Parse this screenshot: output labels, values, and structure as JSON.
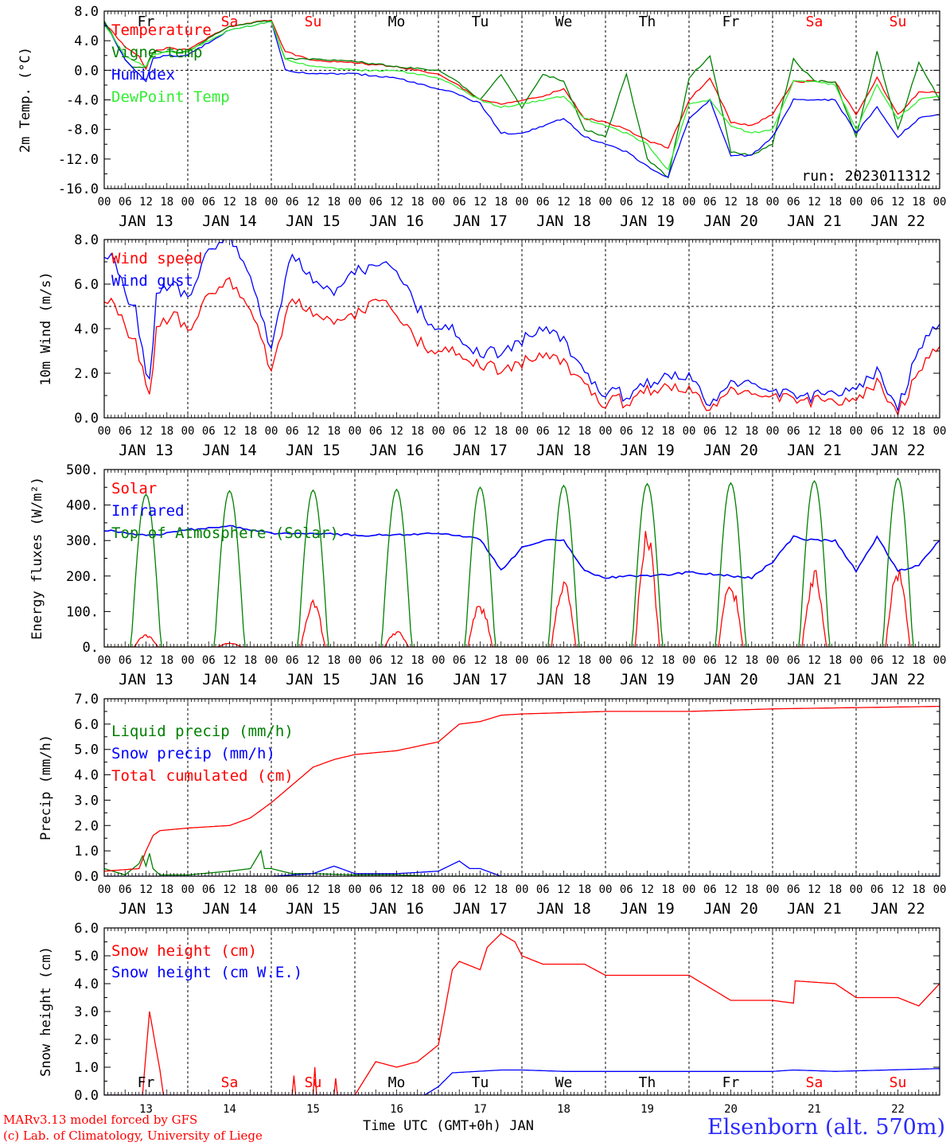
{
  "colors": {
    "red": "#ff0000",
    "green": "#008000",
    "blue": "#0000ff",
    "lime": "#33ee33",
    "black": "#000000"
  },
  "days": [
    "Fr",
    "Sa",
    "Su",
    "Mo",
    "Tu",
    "We",
    "Th",
    "Fr",
    "Sa",
    "Su"
  ],
  "dates": [
    "JAN 13",
    "JAN 14",
    "JAN 15",
    "JAN 16",
    "JAN 17",
    "JAN 18",
    "JAN 19",
    "JAN 20",
    "JAN 21",
    "JAN 22"
  ],
  "day_numbers": [
    "13",
    "14",
    "15",
    "16",
    "17",
    "18",
    "19",
    "20",
    "21",
    "22"
  ],
  "hour_labels": [
    "00",
    "06",
    "12",
    "18"
  ],
  "final_hour_label": "00",
  "footer": {
    "credit_line1": "MARv3.13 model forced by GFS",
    "credit_line2": "(c) Lab. of Climatology, University of Liege",
    "xlabel": "Time UTC (GMT+0h) JAN",
    "station": "Elsenborn (alt. 570m)"
  },
  "chart_data": [
    {
      "type": "line",
      "ylabel": "2m Temp. (°C)",
      "ylim": [
        -16,
        8
      ],
      "yticks": [
        "8.0",
        "4.0",
        "0.0",
        "-4.0",
        "-8.0",
        "-12.0",
        "-16.0"
      ],
      "run_label": "run: 2023011312",
      "x_unit": "hours since JAN 13 00 UTC",
      "series": [
        {
          "name": "Temperature",
          "color": "#ff0000",
          "x": [
            0,
            6,
            10,
            12,
            14,
            18,
            24,
            36,
            48,
            52,
            60,
            72,
            84,
            96,
            100,
            108,
            114,
            120,
            126,
            132,
            138,
            144,
            150,
            156,
            162,
            168,
            174,
            180,
            186,
            192,
            198,
            204,
            210,
            216,
            222,
            228,
            234,
            240
          ],
          "y": [
            6.5,
            3.2,
            2.0,
            0.2,
            2.5,
            3.0,
            2.8,
            6.0,
            6.8,
            2.5,
            1.3,
            1.0,
            0.5,
            -0.5,
            -1.5,
            -4.0,
            -4.5,
            -4.0,
            -3.5,
            -2.5,
            -6.5,
            -7.0,
            -8.0,
            -9.5,
            -10.5,
            -4.0,
            -1.0,
            -7.0,
            -7.5,
            -6.0,
            -1.5,
            -1.5,
            -1.5,
            -6.0,
            -1.0,
            -6.0,
            -3.0,
            -3.0
          ]
        },
        {
          "name": "Vigne temp",
          "color": "#008000",
          "x": [
            0,
            6,
            8,
            12,
            14,
            18,
            24,
            36,
            48,
            52,
            60,
            72,
            84,
            96,
            100,
            108,
            114,
            120,
            126,
            132,
            138,
            144,
            150,
            156,
            162,
            168,
            174,
            180,
            186,
            192,
            198,
            204,
            210,
            216,
            222,
            228,
            234,
            240
          ],
          "y": [
            6.8,
            1.5,
            0.5,
            0.5,
            2.5,
            2.5,
            2.5,
            6.0,
            6.7,
            1.5,
            1.5,
            1.2,
            0.5,
            0.0,
            -1.0,
            -4.0,
            -0.5,
            -5.0,
            -0.5,
            -1.5,
            -8.0,
            -9.0,
            -0.5,
            -12.0,
            -14.5,
            -1.0,
            2.0,
            -11.0,
            -11.5,
            -10.0,
            1.5,
            -1.5,
            -1.5,
            -9.0,
            2.5,
            -8.0,
            1.0,
            -4.0
          ]
        },
        {
          "name": "Humidex",
          "color": "#0000ff",
          "x": [
            0,
            6,
            12,
            14,
            18,
            24,
            36,
            48,
            52,
            60,
            72,
            84,
            96,
            100,
            108,
            114,
            120,
            126,
            132,
            138,
            144,
            150,
            156,
            162,
            168,
            174,
            180,
            186,
            192,
            198,
            204,
            210,
            216,
            222,
            228,
            234,
            240
          ],
          "y": [
            6.5,
            1.5,
            -1.5,
            1.5,
            2.0,
            2.0,
            5.5,
            6.5,
            0.0,
            -0.5,
            -0.5,
            -1.0,
            -2.5,
            -3.0,
            -4.5,
            -8.5,
            -8.5,
            -7.5,
            -6.5,
            -9.0,
            -10.0,
            -11.0,
            -13.0,
            -14.5,
            -6.5,
            -4.0,
            -11.5,
            -11.5,
            -9.0,
            -4.0,
            -4.0,
            -4.0,
            -8.5,
            -5.0,
            -9.0,
            -6.5,
            -6.0
          ]
        },
        {
          "name": "DewPoint Temp",
          "color": "#33ee33",
          "x": [
            0,
            6,
            12,
            14,
            18,
            24,
            36,
            48,
            52,
            60,
            72,
            84,
            96,
            100,
            108,
            114,
            120,
            126,
            132,
            138,
            144,
            150,
            156,
            162,
            168,
            174,
            180,
            186,
            192,
            198,
            204,
            210,
            216,
            222,
            228,
            234,
            240
          ],
          "y": [
            6.3,
            2.0,
            0.5,
            2.0,
            2.5,
            2.5,
            5.5,
            6.5,
            1.5,
            0.5,
            0.0,
            0.0,
            -1.0,
            -2.0,
            -4.0,
            -5.0,
            -4.5,
            -4.0,
            -3.5,
            -6.5,
            -7.5,
            -8.5,
            -10.0,
            -13.5,
            -4.5,
            -4.0,
            -7.5,
            -8.5,
            -8.0,
            -1.5,
            -1.5,
            -2.0,
            -8.0,
            -2.0,
            -6.5,
            -4.0,
            -3.5
          ]
        }
      ],
      "legend_placement": "left"
    },
    {
      "type": "line",
      "ylabel": "10m Wind (m/s)",
      "ylim": [
        0,
        8
      ],
      "yticks": [
        "8.0",
        "6.0",
        "4.0",
        "2.0",
        "0.0"
      ],
      "x_unit": "hours since JAN 13 00 UTC",
      "series": [
        {
          "name": "Wind speed",
          "color": "#ff0000",
          "x": [
            0,
            3,
            6,
            9,
            12,
            13,
            15,
            18,
            21,
            24,
            30,
            36,
            42,
            45,
            48,
            54,
            60,
            66,
            72,
            78,
            84,
            90,
            96,
            100,
            102,
            108,
            114,
            120,
            126,
            132,
            138,
            144,
            147,
            150,
            156,
            162,
            168,
            174,
            180,
            186,
            192,
            198,
            204,
            210,
            216,
            222,
            228,
            234,
            240
          ],
          "y": [
            5.5,
            5.0,
            4.0,
            3.5,
            1.5,
            0.8,
            4.0,
            4.5,
            4.5,
            4.0,
            5.5,
            6.0,
            5.0,
            3.5,
            2.0,
            5.5,
            4.5,
            4.2,
            4.5,
            5.5,
            4.5,
            3.5,
            2.8,
            3.0,
            2.8,
            2.5,
            2.0,
            2.5,
            2.8,
            2.5,
            1.5,
            0.5,
            1.2,
            0.5,
            1.2,
            1.5,
            1.2,
            0.4,
            1.2,
            1.0,
            0.8,
            1.0,
            0.7,
            0.8,
            1.0,
            1.5,
            0.3,
            2.0,
            3.2
          ]
        },
        {
          "name": "Wind gust",
          "color": "#0000ff",
          "x": [
            0,
            3,
            6,
            9,
            12,
            13,
            15,
            18,
            21,
            24,
            30,
            36,
            42,
            45,
            48,
            54,
            60,
            66,
            72,
            78,
            84,
            90,
            96,
            100,
            102,
            108,
            114,
            120,
            126,
            132,
            138,
            144,
            147,
            150,
            156,
            162,
            168,
            174,
            180,
            186,
            192,
            198,
            204,
            210,
            216,
            222,
            228,
            234,
            240
          ],
          "y": [
            7.5,
            7.0,
            5.5,
            5.0,
            2.0,
            1.5,
            5.5,
            6.0,
            5.8,
            5.5,
            7.5,
            8.0,
            6.5,
            4.5,
            3.0,
            7.5,
            6.0,
            5.5,
            6.5,
            7.0,
            6.5,
            5.0,
            3.8,
            4.0,
            3.5,
            3.0,
            2.8,
            3.5,
            4.0,
            3.5,
            2.0,
            1.0,
            1.5,
            0.8,
            1.5,
            2.0,
            1.8,
            0.6,
            1.5,
            1.5,
            1.0,
            1.2,
            0.9,
            1.2,
            1.5,
            2.0,
            0.5,
            3.0,
            4.2
          ]
        }
      ],
      "legend_placement": "left"
    },
    {
      "type": "line",
      "ylabel": "Energy fluxes (W/m²)",
      "ylim": [
        0,
        500
      ],
      "yticks": [
        "500.",
        "400.",
        "300.",
        "200.",
        "100.",
        "0."
      ],
      "x_unit": "hours since JAN 13 00 UTC",
      "series": [
        {
          "name": "Solar",
          "color": "#ff0000",
          "peaks": [
            30,
            10,
            115,
            40,
            110,
            175,
            300,
            170,
            195,
            210
          ]
        },
        {
          "name": "Infrared",
          "color": "#0000ff",
          "x": [
            0,
            12,
            18,
            24,
            36,
            48,
            60,
            72,
            84,
            96,
            108,
            114,
            120,
            126,
            132,
            138,
            144,
            150,
            156,
            168,
            180,
            186,
            192,
            198,
            204,
            210,
            216,
            222,
            228,
            234,
            240
          ],
          "y": [
            330,
            315,
            320,
            330,
            340,
            320,
            320,
            315,
            315,
            320,
            305,
            215,
            280,
            300,
            300,
            215,
            195,
            200,
            200,
            210,
            200,
            195,
            240,
            310,
            300,
            300,
            215,
            310,
            215,
            230,
            300
          ]
        },
        {
          "name": "Top of Atmosphere (Solar)",
          "color": "#008000",
          "peaks": [
            430,
            440,
            442,
            444,
            450,
            455,
            460,
            462,
            468,
            475
          ]
        }
      ],
      "legend_placement": "left"
    },
    {
      "type": "line",
      "ylabel": "Precip (mm/h)",
      "ylim": [
        0,
        7
      ],
      "yticks": [
        "7.0",
        "6.0",
        "5.0",
        "4.0",
        "3.0",
        "2.0",
        "1.0",
        "0.0"
      ],
      "x_unit": "hours since JAN 13 00 UTC",
      "series": [
        {
          "name": "Liquid precip (mm/h)",
          "color": "#008000",
          "x": [
            0,
            6,
            10,
            11,
            12,
            13,
            14,
            16,
            24,
            36,
            42,
            45,
            46,
            48,
            54,
            60,
            72,
            84,
            96,
            240
          ],
          "y": [
            0.3,
            0.05,
            0.5,
            0.8,
            0.4,
            0.9,
            0.3,
            0.05,
            0.05,
            0.2,
            0.3,
            1.0,
            0.3,
            0.3,
            0.1,
            0.1,
            0.05,
            0.05,
            0.0,
            0.0
          ]
        },
        {
          "name": "Snow precip (mm/h)",
          "color": "#0000ff",
          "x": [
            0,
            48,
            60,
            66,
            72,
            84,
            96,
            102,
            105,
            108,
            114,
            120,
            240
          ],
          "y": [
            0.0,
            0.0,
            0.1,
            0.4,
            0.1,
            0.1,
            0.2,
            0.6,
            0.3,
            0.3,
            0.0,
            0.0,
            0.0
          ]
        },
        {
          "name": "Total cumulated (cm)",
          "color": "#ff0000",
          "x": [
            0,
            10,
            12,
            14,
            16,
            20,
            24,
            36,
            42,
            48,
            54,
            60,
            66,
            72,
            84,
            96,
            102,
            108,
            114,
            120,
            144,
            168,
            192,
            216,
            240
          ],
          "y": [
            0.2,
            0.3,
            1.0,
            1.6,
            1.8,
            1.85,
            1.9,
            2.0,
            2.3,
            2.9,
            3.6,
            4.3,
            4.6,
            4.8,
            4.95,
            5.3,
            6.0,
            6.1,
            6.35,
            6.4,
            6.5,
            6.5,
            6.6,
            6.65,
            6.7
          ]
        }
      ],
      "legend_placement": "left"
    },
    {
      "type": "line",
      "ylabel": "Snow height (cm)",
      "ylim": [
        0,
        6
      ],
      "yticks": [
        "6.0",
        "5.0",
        "4.0",
        "3.0",
        "2.0",
        "1.0",
        "0.0"
      ],
      "x_unit": "hours since JAN 13 00 UTC",
      "series": [
        {
          "name": "Snow height (cm)",
          "color": "#ff0000",
          "x": [
            0,
            11,
            13,
            16,
            17,
            36,
            54,
            54.5,
            55,
            60,
            60.5,
            61,
            66,
            66.5,
            67,
            72,
            78,
            84,
            90,
            96,
            100,
            102,
            108,
            110,
            114,
            118,
            120,
            126,
            132,
            138,
            144,
            156,
            168,
            180,
            192,
            198,
            198.5,
            210,
            216,
            228,
            234,
            240
          ],
          "y": [
            0,
            0,
            3.0,
            0.9,
            0,
            0,
            0,
            0.7,
            0,
            0,
            1.0,
            0,
            0,
            0.6,
            0,
            0,
            1.2,
            1.0,
            1.2,
            1.8,
            4.5,
            4.8,
            4.5,
            5.3,
            5.8,
            5.5,
            5.0,
            4.7,
            4.7,
            4.7,
            4.3,
            4.3,
            4.3,
            3.4,
            3.4,
            3.3,
            4.1,
            4.0,
            3.5,
            3.5,
            3.2,
            4.0
          ]
        },
        {
          "name": "Snow height (cm W.E.)",
          "color": "#0000ff",
          "x": [
            0,
            92,
            96,
            100,
            114,
            120,
            132,
            144,
            168,
            192,
            198,
            210,
            240
          ],
          "y": [
            0,
            0,
            0.3,
            0.8,
            0.9,
            0.9,
            0.85,
            0.85,
            0.85,
            0.85,
            0.9,
            0.85,
            0.95
          ]
        }
      ],
      "legend_placement": "left"
    }
  ]
}
